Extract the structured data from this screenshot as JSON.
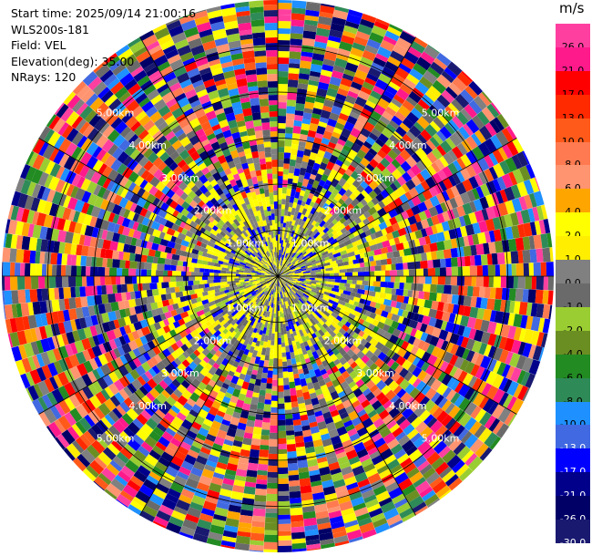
{
  "header": {
    "start_time": "Start time: 2025/09/14 21:00:16",
    "instrument": "WLS200s-181",
    "field": "Field: VEL",
    "elevation": "Elevation(deg): 35.00",
    "nrays": "NRays: 120"
  },
  "chart_data": {
    "type": "ppi-polar-heatmap",
    "field": "VEL",
    "units": "m/s",
    "n_rays": 120,
    "elevation_deg": 35.0,
    "range_max_km": 6.0,
    "range_ring_labels": [
      "1.00km",
      "2.00km",
      "3.00km",
      "4.00km",
      "5.00km"
    ],
    "colorbar": {
      "ticks": [
        "26.0",
        "21.0",
        "17.0",
        "13.0",
        "10.0",
        "8.0",
        "6.0",
        "4.0",
        "2.0",
        "1.0",
        "0.0",
        "-1.0",
        "-2.0",
        "-4.0",
        "-6.0",
        "-8.0",
        "-10.0",
        "-13.0",
        "-17.0",
        "-21.0",
        "-26.0",
        "-30.0"
      ],
      "colors": [
        "#ff3fa0",
        "#ff1a8c",
        "#ff0000",
        "#ff2a00",
        "#ff5a1a",
        "#ff7a50",
        "#ff9470",
        "#ffa500",
        "#ffff00",
        "#ffee00",
        "#808080",
        "#6a6a6a",
        "#9acd32",
        "#6b8e23",
        "#228b22",
        "#2e8b57",
        "#1e90ff",
        "#4169e1",
        "#0000ff",
        "#00008b",
        "#000066",
        "#191970"
      ]
    },
    "grid": true
  }
}
